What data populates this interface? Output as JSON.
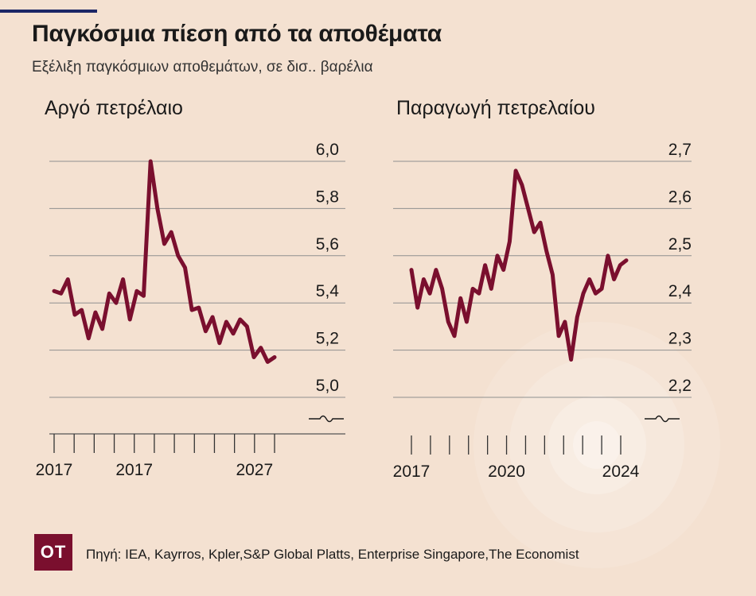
{
  "header": {
    "title": "Παγκόσμια πίεση από τα αποθέματα",
    "subtitle": "Εξέλιξη παγκόσμιων αποθεμάτων, σε δισ.. βαρέλια"
  },
  "colors": {
    "line": "#7a0f2e",
    "background": "#f4e1d1",
    "grid": "#8f8f8f",
    "accent_rule": "#1c2766"
  },
  "chart_data": [
    {
      "type": "line",
      "title": "Αργό πετρέλαιο",
      "ylim": [
        5.0,
        6.0
      ],
      "yticks": [
        5.0,
        5.2,
        5.4,
        5.6,
        5.8,
        6.0
      ],
      "ytick_labels": [
        "5,0",
        "5,2",
        "5,4",
        "5,6",
        "5,8",
        "6,0"
      ],
      "xtick_labels": [
        "2017",
        "2017",
        "2027"
      ],
      "axis_break": true,
      "grid": true,
      "series": [
        {
          "values": [
            5.45,
            5.44,
            5.5,
            5.35,
            5.37,
            5.25,
            5.36,
            5.29,
            5.44,
            5.4,
            5.5,
            5.33,
            5.45,
            5.43,
            6.0,
            5.8,
            5.65,
            5.7,
            5.6,
            5.55,
            5.37,
            5.38,
            5.28,
            5.34,
            5.23,
            5.32,
            5.27,
            5.33,
            5.3,
            5.17,
            5.21,
            5.15,
            5.17
          ]
        }
      ]
    },
    {
      "type": "line",
      "title": "Παραγωγή πετρελαίου",
      "ylim": [
        2.2,
        2.7
      ],
      "yticks": [
        2.2,
        2.3,
        2.4,
        2.5,
        2.6,
        2.7
      ],
      "ytick_labels": [
        "2,2",
        "2,3",
        "2,4",
        "2,5",
        "2,6",
        "2,7"
      ],
      "xtick_labels": [
        "2017",
        "2020",
        "2024"
      ],
      "axis_break": true,
      "grid": true,
      "series": [
        {
          "values": [
            2.47,
            2.39,
            2.45,
            2.42,
            2.47,
            2.43,
            2.36,
            2.33,
            2.41,
            2.36,
            2.43,
            2.42,
            2.48,
            2.43,
            2.5,
            2.47,
            2.53,
            2.68,
            2.65,
            2.6,
            2.55,
            2.57,
            2.51,
            2.46,
            2.33,
            2.36,
            2.28,
            2.37,
            2.42,
            2.45,
            2.42,
            2.43,
            2.5,
            2.45,
            2.48,
            2.49
          ]
        }
      ]
    }
  ],
  "footer": {
    "logo": "ΟΤ",
    "source": "Πηγή:  IEA, Kayrros, Kpler,S&P Global Platts, Enterprise Singapore,The Economist"
  }
}
